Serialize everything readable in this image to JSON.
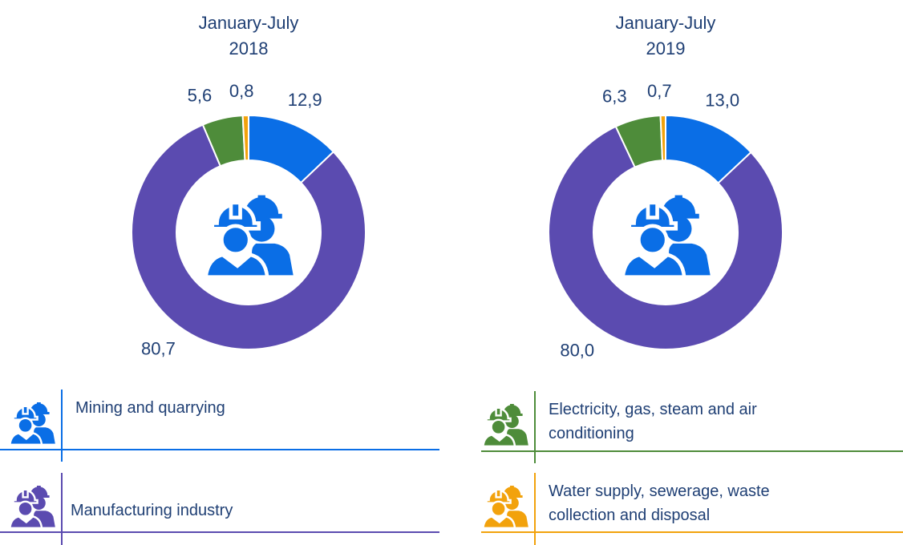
{
  "chart_data": [
    {
      "type": "pie",
      "title": "January-July",
      "subtitle": "2018",
      "values": [
        12.9,
        80.7,
        5.6,
        0.8
      ],
      "value_labels": [
        "12,9",
        "80,7",
        "5,6",
        "0,8"
      ]
    },
    {
      "type": "pie",
      "title": "January-July",
      "subtitle": "2019",
      "values": [
        13.0,
        80.0,
        6.3,
        0.7
      ],
      "value_labels": [
        "13,0",
        "80,0",
        "6,3",
        "0,7"
      ]
    }
  ],
  "legend": {
    "categories": [
      "Mining and quarrying",
      "Manufacturing industry",
      "Electricity, gas, steam and air conditioning",
      "Water supply, sewerage, waste collection and disposal"
    ],
    "colors": [
      "#0a6ee6",
      "#5b4bb0",
      "#4e8c3a",
      "#f2a20c"
    ]
  }
}
